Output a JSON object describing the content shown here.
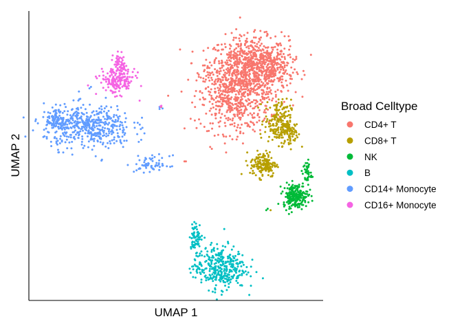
{
  "chart_data": {
    "type": "scatter",
    "xlabel": "UMAP 1",
    "ylabel": "UMAP 2",
    "xlim": [
      0,
      100
    ],
    "ylim": [
      0,
      100
    ],
    "ticks": "none",
    "grid": false,
    "legend": {
      "title": "Broad Celltype",
      "placement": "right",
      "entries": [
        {
          "label": "CD4+ T",
          "color": "#F8766D"
        },
        {
          "label": "CD8+ T",
          "color": "#B79F00"
        },
        {
          "label": "NK",
          "color": "#00BA38"
        },
        {
          "label": "B",
          "color": "#00BFC4"
        },
        {
          "label": "CD14+ Monocyte",
          "color": "#619CFF"
        },
        {
          "label": "CD16+ Monocyte",
          "color": "#F564E3"
        }
      ]
    },
    "series": [
      {
        "name": "CD4+ T",
        "color": "#F8766D",
        "approx_points": 1400,
        "clusters": [
          {
            "cx": 75,
            "cy": 81,
            "sx": 9,
            "sy": 7,
            "n": 700
          },
          {
            "cx": 70,
            "cy": 70,
            "sx": 8,
            "sy": 8,
            "n": 500
          },
          {
            "cx": 83,
            "cy": 80,
            "sx": 5,
            "sy": 6,
            "n": 200
          }
        ],
        "outliers": [
          [
            45,
            67
          ],
          [
            53,
            48
          ],
          [
            53.5,
            48
          ]
        ]
      },
      {
        "name": "CD8+ T",
        "color": "#B79F00",
        "approx_points": 420,
        "clusters": [
          {
            "cx": 85,
            "cy": 62,
            "sx": 3,
            "sy": 5,
            "n": 180
          },
          {
            "cx": 80,
            "cy": 47,
            "sx": 3,
            "sy": 3,
            "n": 160
          },
          {
            "cx": 89,
            "cy": 58,
            "sx": 2,
            "sy": 3,
            "n": 80
          }
        ],
        "outliers": [
          [
            82.5,
            31
          ]
        ]
      },
      {
        "name": "NK",
        "color": "#00BA38",
        "approx_points": 260,
        "clusters": [
          {
            "cx": 91,
            "cy": 36,
            "sx": 2.8,
            "sy": 2.8,
            "n": 220
          },
          {
            "cx": 95,
            "cy": 44,
            "sx": 1,
            "sy": 3,
            "n": 40
          }
        ],
        "outliers": [
          [
            81,
            31
          ],
          [
            81.5,
            31.5
          ],
          [
            87,
            33
          ]
        ]
      },
      {
        "name": "B",
        "color": "#00BFC4",
        "approx_points": 420,
        "clusters": [
          {
            "cx": 65,
            "cy": 11,
            "sx": 6,
            "sy": 5,
            "n": 360
          },
          {
            "cx": 57,
            "cy": 22,
            "sx": 1.5,
            "sy": 3,
            "n": 60
          }
        ],
        "outliers": []
      },
      {
        "name": "CD14+ Monocyte",
        "color": "#619CFF",
        "approx_points": 620,
        "clusters": [
          {
            "cx": 20,
            "cy": 60,
            "sx": 10,
            "sy": 5,
            "n": 480
          },
          {
            "cx": 9,
            "cy": 63,
            "sx": 3,
            "sy": 2,
            "n": 80
          },
          {
            "cx": 42,
            "cy": 47,
            "sx": 4,
            "sy": 2,
            "n": 60
          }
        ],
        "outliers": [
          [
            20.5,
            73.5
          ],
          [
            21,
            74
          ],
          [
            44.5,
            67
          ],
          [
            45.5,
            66.5
          ],
          [
            44.5,
            66.3
          ]
        ]
      },
      {
        "name": "CD16+ Monocyte",
        "color": "#F564E3",
        "approx_points": 230,
        "clusters": [
          {
            "cx": 30,
            "cy": 76,
            "sx": 4,
            "sy": 3,
            "n": 170
          },
          {
            "cx": 31,
            "cy": 82,
            "sx": 1.5,
            "sy": 2.5,
            "n": 60
          }
        ],
        "outliers": [
          [
            20,
            74.5
          ],
          [
            44.8,
            67.2
          ],
          [
            45.1,
            67.4
          ]
        ]
      }
    ]
  }
}
